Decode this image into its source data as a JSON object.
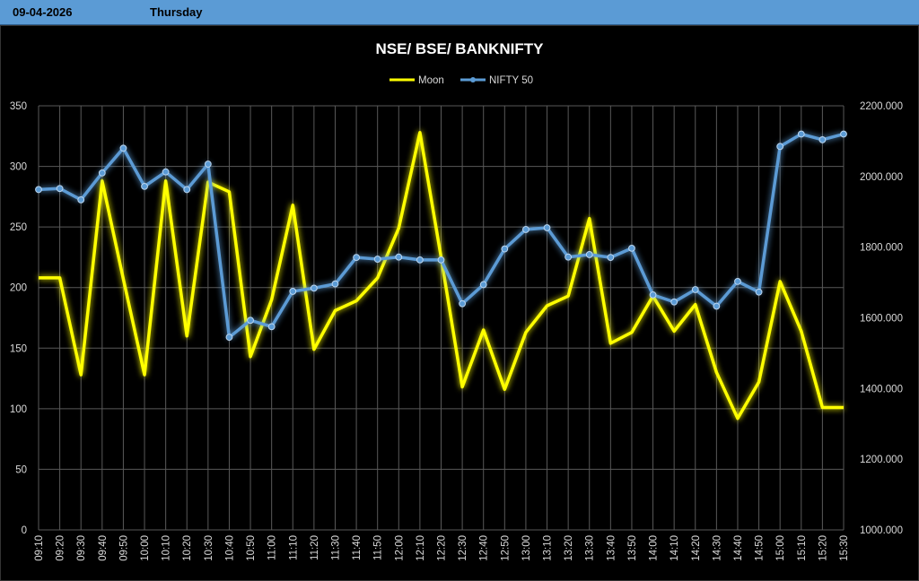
{
  "header": {
    "date": "09-04-2026",
    "day": "Thursday"
  },
  "colors": {
    "moon": "#ffff00",
    "nifty": "#5b9bd5",
    "header_bg": "#5b9bd5",
    "background": "#000000",
    "grid": "#595959"
  },
  "chart_data": {
    "type": "line",
    "title": "NSE/ BSE/ BANKNIFTY",
    "legend_position": "top",
    "grid": true,
    "categories": [
      "09:10",
      "09:20",
      "09:30",
      "09:40",
      "09:50",
      "10:00",
      "10:10",
      "10:20",
      "10:30",
      "10:40",
      "10:50",
      "11:00",
      "11:10",
      "11:20",
      "11:30",
      "11:40",
      "11:50",
      "12:00",
      "12:10",
      "12:20",
      "12:30",
      "12:40",
      "12:50",
      "13:00",
      "13:10",
      "13:20",
      "13:30",
      "13:40",
      "13:50",
      "14:00",
      "14:10",
      "14:20",
      "14:30",
      "14:40",
      "14:50",
      "15:00",
      "15:10",
      "15:20",
      "15:30"
    ],
    "y_left": {
      "min": 0,
      "max": 350,
      "ticks": [
        "0",
        "50",
        "100",
        "150",
        "200",
        "250",
        "300",
        "350"
      ]
    },
    "y_right": {
      "min": 1000,
      "max": 2200,
      "ticks": [
        "1000.000",
        "1200.000",
        "1400.000",
        "1600.000",
        "1800.000",
        "2000.000",
        "2200.000"
      ]
    },
    "series": [
      {
        "name": "Moon",
        "axis": "left",
        "values": [
          208,
          208,
          128,
          288,
          207,
          128,
          288,
          160,
          287,
          279,
          143,
          190,
          268,
          149,
          181,
          189,
          208,
          249,
          328,
          225,
          118,
          165,
          116,
          163,
          185,
          193,
          257,
          154,
          163,
          193,
          164,
          186,
          130,
          92,
          122,
          205,
          164,
          101,
          101
        ]
      },
      {
        "name": "NIFTY 50",
        "axis": "right",
        "values": [
          1963,
          1966,
          1934,
          2010,
          2080,
          1972,
          2013,
          1963,
          2035,
          1545,
          1593,
          1575,
          1675,
          1684,
          1696,
          1771,
          1766,
          1772,
          1764,
          1764,
          1640,
          1694,
          1795,
          1850,
          1855,
          1772,
          1779,
          1771,
          1797,
          1665,
          1645,
          1680,
          1633,
          1703,
          1673,
          2085,
          2120,
          2104,
          2120
        ]
      }
    ]
  }
}
